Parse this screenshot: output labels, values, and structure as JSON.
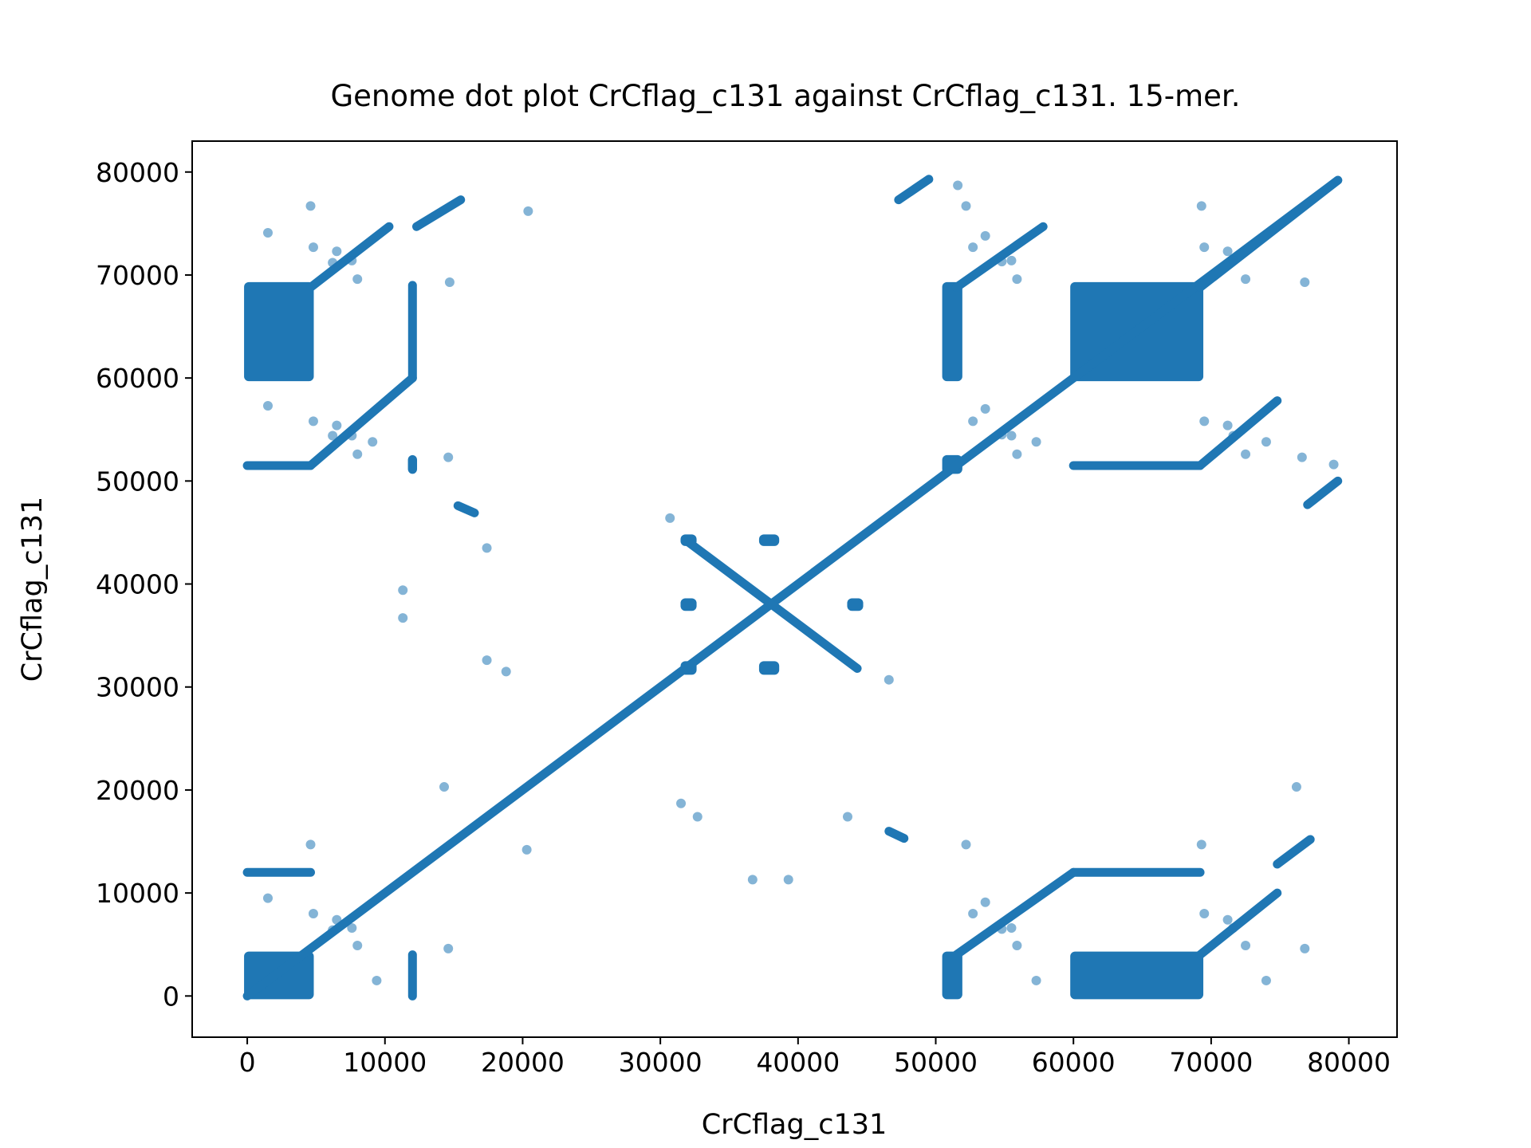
{
  "chart_data": {
    "type": "scatter",
    "title": "Genome dot plot CrCflag_c131 against CrCflag_c131. 15-mer.",
    "xlabel": "CrCflag_c131",
    "ylabel": "CrCflag_c131",
    "xlim": [
      -4000,
      83500
    ],
    "ylim": [
      -4000,
      83000
    ],
    "xticks": [
      0,
      10000,
      20000,
      30000,
      40000,
      50000,
      60000,
      70000,
      80000
    ],
    "yticks": [
      0,
      10000,
      20000,
      30000,
      40000,
      50000,
      60000,
      70000,
      80000
    ],
    "grid": false,
    "legend": "none",
    "colors": {
      "series": "#1f77b4"
    },
    "series": [
      {
        "segments": [
          [
            [
              0,
              0
            ],
            [
              79200,
              79200
            ]
          ],
          [
            [
              31800,
              44300
            ],
            [
              44300,
              31800
            ]
          ],
          [
            [
              4600,
              68800
            ],
            [
              10300,
              74700
            ]
          ],
          [
            [
              4600,
              51500
            ],
            [
              12000,
              60000
            ]
          ],
          [
            [
              12300,
              74700
            ],
            [
              15500,
              77300
            ]
          ],
          [
            [
              47300,
              77300
            ],
            [
              49500,
              79300
            ]
          ],
          [
            [
              51500,
              68800
            ],
            [
              57800,
              74700
            ]
          ],
          [
            [
              69200,
              68800
            ],
            [
              79200,
              79200
            ]
          ],
          [
            [
              69200,
              51500
            ],
            [
              74800,
              57800
            ]
          ],
          [
            [
              77000,
              47700
            ],
            [
              79200,
              50000
            ]
          ],
          [
            [
              51500,
              4000
            ],
            [
              60000,
              12000
            ]
          ],
          [
            [
              69200,
              4000
            ],
            [
              74800,
              10000
            ]
          ],
          [
            [
              74800,
              12800
            ],
            [
              77200,
              15200
            ]
          ],
          [
            [
              0,
              12000
            ],
            [
              4600,
              12000
            ]
          ],
          [
            [
              60000,
              12000
            ],
            [
              69200,
              12000
            ]
          ],
          [
            [
              0,
              51500
            ],
            [
              4600,
              51500
            ]
          ],
          [
            [
              60000,
              51500
            ],
            [
              69200,
              51500
            ]
          ],
          [
            [
              12000,
              0
            ],
            [
              12000,
              4000
            ]
          ],
          [
            [
              12000,
              60000
            ],
            [
              12000,
              69000
            ]
          ],
          [
            [
              15300,
              47600
            ],
            [
              16500,
              46900
            ]
          ],
          [
            [
              46600,
              16000
            ],
            [
              47700,
              15300
            ]
          ]
        ],
        "blocks": [
          [
            [
              0,
              0
            ],
            [
              4600,
              4000
            ]
          ],
          [
            [
              0,
              60000
            ],
            [
              4600,
              69000
            ]
          ],
          [
            [
              60000,
              60000
            ],
            [
              69200,
              69000
            ]
          ],
          [
            [
              60000,
              0
            ],
            [
              69200,
              4000
            ]
          ],
          [
            [
              50700,
              60000
            ],
            [
              51700,
              69000
            ]
          ],
          [
            [
              50700,
              0
            ],
            [
              51700,
              4000
            ]
          ],
          [
            [
              11900,
              51000
            ],
            [
              12100,
              52200
            ]
          ],
          [
            [
              31700,
              44000
            ],
            [
              32400,
              44500
            ]
          ],
          [
            [
              37400,
              44000
            ],
            [
              38400,
              44500
            ]
          ],
          [
            [
              31700,
              37700
            ],
            [
              32400,
              38300
            ]
          ],
          [
            [
              43800,
              37700
            ],
            [
              44500,
              38300
            ]
          ],
          [
            [
              31700,
              31500
            ],
            [
              32400,
              32200
            ]
          ],
          [
            [
              37400,
              31500
            ],
            [
              38400,
              32200
            ]
          ],
          [
            [
              50700,
              51000
            ],
            [
              51700,
              52200
            ]
          ]
        ],
        "points": [
          [
            1500,
            74100
          ],
          [
            4800,
            72700
          ],
          [
            4600,
            76700
          ],
          [
            6500,
            72300
          ],
          [
            6200,
            71200
          ],
          [
            7600,
            71400
          ],
          [
            8000,
            69600
          ],
          [
            1500,
            57300
          ],
          [
            4800,
            55800
          ],
          [
            6500,
            55400
          ],
          [
            6200,
            54400
          ],
          [
            7600,
            54400
          ],
          [
            8000,
            52600
          ],
          [
            9100,
            53800
          ],
          [
            1500,
            9500
          ],
          [
            4800,
            8000
          ],
          [
            4600,
            14700
          ],
          [
            6500,
            7400
          ],
          [
            6200,
            6400
          ],
          [
            7600,
            6600
          ],
          [
            8000,
            4900
          ],
          [
            9400,
            1500
          ],
          [
            14700,
            69300
          ],
          [
            14600,
            52300
          ],
          [
            14600,
            4600
          ],
          [
            20400,
            76200
          ],
          [
            20300,
            14200
          ],
          [
            14300,
            20300
          ],
          [
            17400,
            43500
          ],
          [
            17400,
            32600
          ],
          [
            11300,
            39400
          ],
          [
            11300,
            36700
          ],
          [
            18800,
            31500
          ],
          [
            30700,
            46400
          ],
          [
            31500,
            18700
          ],
          [
            32700,
            17400
          ],
          [
            36700,
            11300
          ],
          [
            39300,
            11300
          ],
          [
            43600,
            17400
          ],
          [
            46600,
            30700
          ],
          [
            51600,
            78700
          ],
          [
            52200,
            76700
          ],
          [
            53600,
            73800
          ],
          [
            52700,
            72700
          ],
          [
            54800,
            71300
          ],
          [
            55500,
            71400
          ],
          [
            55900,
            69600
          ],
          [
            53600,
            57000
          ],
          [
            52700,
            55800
          ],
          [
            54800,
            54500
          ],
          [
            55500,
            54400
          ],
          [
            55900,
            52600
          ],
          [
            57300,
            53800
          ],
          [
            52200,
            14700
          ],
          [
            53600,
            9100
          ],
          [
            52700,
            8000
          ],
          [
            54800,
            6500
          ],
          [
            55500,
            6600
          ],
          [
            55900,
            4900
          ],
          [
            57300,
            1500
          ],
          [
            69300,
            76700
          ],
          [
            69500,
            72700
          ],
          [
            71200,
            72300
          ],
          [
            71600,
            71400
          ],
          [
            72500,
            69600
          ],
          [
            76800,
            69300
          ],
          [
            69500,
            55800
          ],
          [
            71200,
            55400
          ],
          [
            71600,
            54400
          ],
          [
            72500,
            52600
          ],
          [
            74000,
            53800
          ],
          [
            76600,
            52300
          ],
          [
            78900,
            51600
          ],
          [
            69300,
            14700
          ],
          [
            69500,
            8000
          ],
          [
            71200,
            7400
          ],
          [
            71600,
            6600
          ],
          [
            72500,
            4900
          ],
          [
            74000,
            1500
          ],
          [
            76800,
            4600
          ],
          [
            76200,
            20300
          ]
        ]
      }
    ]
  }
}
